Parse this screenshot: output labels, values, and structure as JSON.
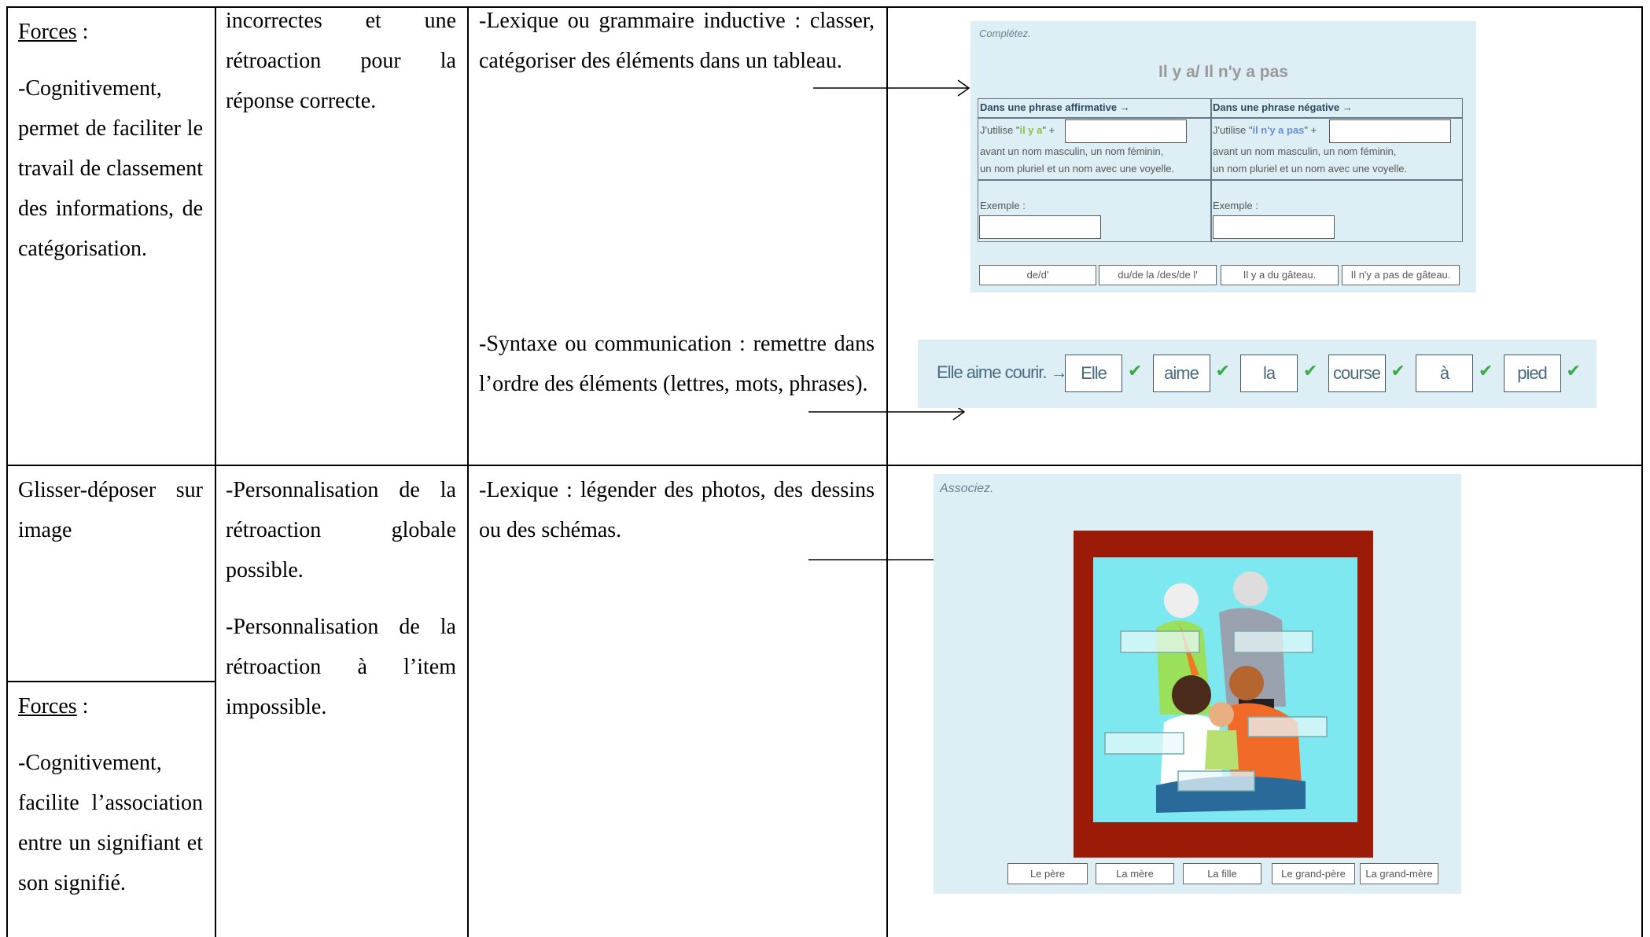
{
  "rows": [
    {
      "col1": {
        "label": "Forces",
        "label_suffix": " :",
        "text": "-Cognitivement, permet de faciliter le travail de classement des informations, de catégorisation."
      },
      "col2": [
        "incorrectes et une rétroaction pour la réponse correcte."
      ],
      "col3": [
        "-Lexique ou grammaire inductive : classer, catégoriser des éléments dans un tableau.",
        "-Syntaxe ou communication : remettre dans l’ordre des éléments (lettres, mots, phrases)."
      ]
    },
    {
      "col1": {
        "title": "Glisser-déposer sur image",
        "label": "Forces",
        "label_suffix": " :",
        "text": "-Cognitivement, facilite l’association entre un signifiant et son signifié."
      },
      "col2": [
        "-Personnalisation de la rétroaction globale possible.",
        "-Personnalisation de la rétroaction à l’item impossible."
      ],
      "col3": [
        "-Lexique : légender des photos, des dessins ou des schémas."
      ]
    }
  ],
  "exercise_table": {
    "instruction": "Complétez.",
    "title": "Il y a/ Il n'y a pas",
    "columns": [
      {
        "header": "Dans une phrase affirmative →",
        "use_prefix": "J'utilise \"",
        "keyword": "il y a",
        "use_suffix": "\" +",
        "note": "avant un nom masculin, un nom féminin,",
        "note2": "un nom pluriel et un nom avec une voyelle.",
        "example": "Exemple :"
      },
      {
        "header": "Dans une phrase négative →",
        "use_prefix": "J'utilise \"",
        "keyword": "il n'y a pas",
        "use_suffix": "\" +",
        "note": "avant un nom masculin, un nom féminin,",
        "note2": "un nom pluriel et un nom avec une voyelle.",
        "example": "Exemple :"
      }
    ],
    "choices": [
      "de/d'",
      "du/de la /des/de l'",
      "Il y a du  gâteau.",
      "Il n'y a pas de  gâteau."
    ]
  },
  "exercise_order": {
    "sentence": "Elle aime courir. →",
    "words": [
      "Elle",
      "aime",
      "la",
      "course",
      "à",
      "pied"
    ]
  },
  "exercise_image": {
    "instruction": "Associez.",
    "labels": [
      "Le père",
      "La mère",
      "La fille",
      "Le grand-père",
      "La grand-mère"
    ]
  }
}
